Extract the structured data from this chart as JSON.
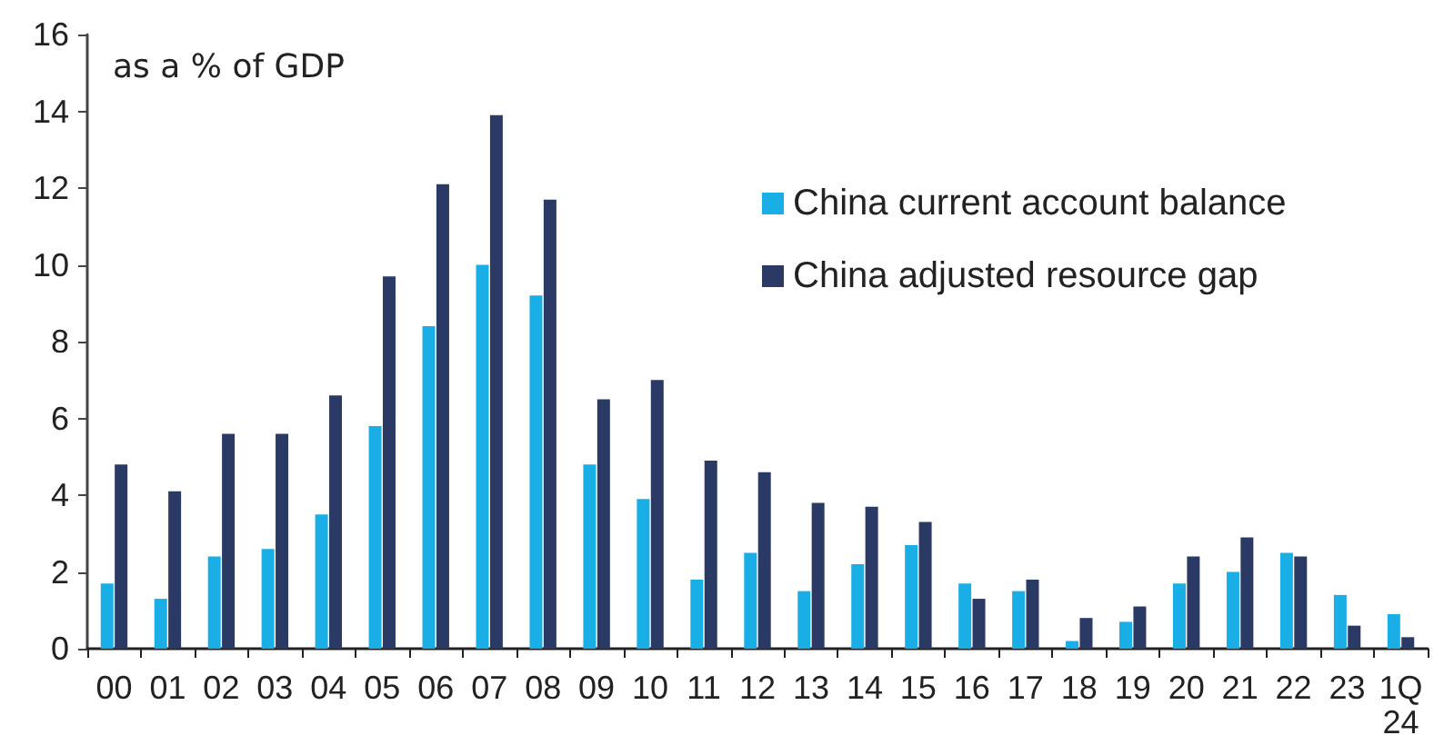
{
  "chart_data": {
    "type": "bar",
    "ylabel": "as a % of GDP",
    "categories": [
      "00",
      "01",
      "02",
      "03",
      "04",
      "05",
      "06",
      "07",
      "08",
      "09",
      "10",
      "11",
      "12",
      "13",
      "14",
      "15",
      "16",
      "17",
      "18",
      "19",
      "20",
      "21",
      "22",
      "23",
      "1Q\n24"
    ],
    "series": [
      {
        "name": "China current account balance",
        "color": "#1aaee6",
        "values": [
          1.7,
          1.3,
          2.4,
          2.6,
          3.5,
          5.8,
          8.4,
          10.0,
          9.2,
          4.8,
          3.9,
          1.8,
          2.5,
          1.5,
          2.2,
          2.7,
          1.7,
          1.5,
          0.2,
          0.7,
          1.7,
          2.0,
          2.5,
          1.4,
          0.9
        ]
      },
      {
        "name": "China adjusted resource gap",
        "color": "#2b3a64",
        "values": [
          4.8,
          4.1,
          5.6,
          5.6,
          6.6,
          9.7,
          12.1,
          13.9,
          11.7,
          6.5,
          7.0,
          4.9,
          4.6,
          3.8,
          3.7,
          3.3,
          1.3,
          1.8,
          0.8,
          1.1,
          2.4,
          2.9,
          2.4,
          0.6,
          0.3
        ]
      }
    ],
    "ylim": [
      0,
      16
    ],
    "yticks": [
      0,
      2,
      4,
      6,
      8,
      10,
      12,
      14,
      16
    ],
    "legend": "top right"
  }
}
